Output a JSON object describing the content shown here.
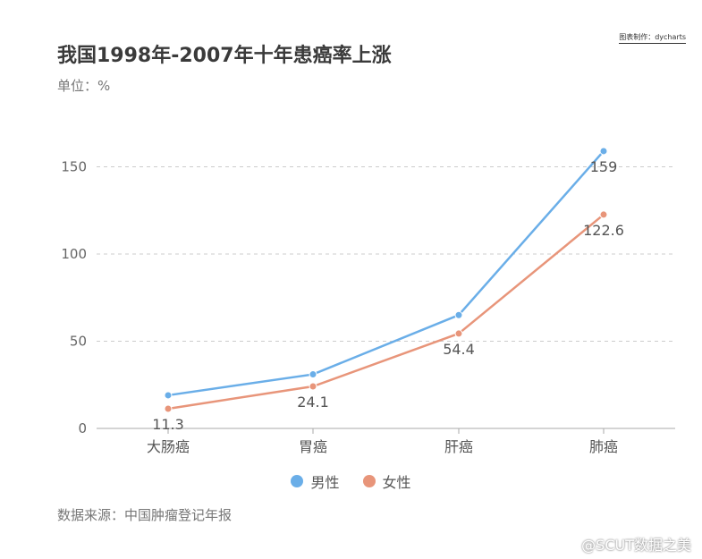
{
  "credit": "图表制作：dycharts",
  "title": "我国1998年-2007年十年患癌率上涨",
  "unit": "单位：%",
  "source": "数据来源：中国肿瘤登记年报",
  "watermark": "@SCUT数据之美",
  "legend": [
    {
      "name": "男性",
      "color": "#6aaee8"
    },
    {
      "name": "女性",
      "color": "#e8957a"
    }
  ],
  "chart_data": {
    "type": "line",
    "categories": [
      "大肠癌",
      "胃癌",
      "肝癌",
      "肺癌"
    ],
    "series": [
      {
        "name": "男性",
        "color": "#6aaee8",
        "values": [
          19,
          31,
          65,
          159
        ],
        "labels": [
          "",
          "",
          "",
          "159"
        ]
      },
      {
        "name": "女性",
        "color": "#e8957a",
        "values": [
          11.3,
          24.1,
          54.4,
          122.6
        ],
        "labels": [
          "11.3",
          "24.1",
          "54.4",
          "122.6"
        ]
      }
    ],
    "yticks": [
      0,
      50,
      100,
      150
    ],
    "ylim": [
      0,
      150
    ],
    "grid": true,
    "legend_position": "bottom"
  }
}
